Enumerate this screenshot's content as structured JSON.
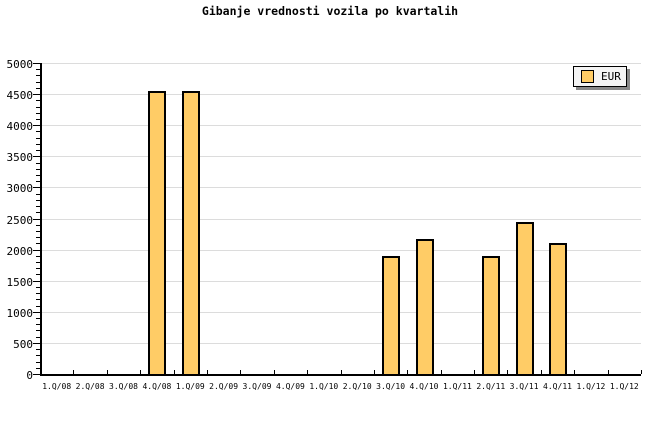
{
  "chart_data": {
    "type": "bar",
    "title": "Gibanje vrednosti vozila po kvartalih",
    "categories": [
      "1.Q/08",
      "2.Q/08",
      "3.Q/08",
      "4.Q/08",
      "1.Q/09",
      "2.Q/09",
      "3.Q/09",
      "4.Q/09",
      "1.Q/10",
      "2.Q/10",
      "3.Q/10",
      "4.Q/10",
      "1.Q/11",
      "2.Q/11",
      "3.Q/11",
      "4.Q/11",
      "1.Q/12",
      "1.Q/12"
    ],
    "series": [
      {
        "name": "EUR",
        "values": [
          null,
          null,
          null,
          4550,
          4550,
          null,
          null,
          null,
          null,
          null,
          1900,
          2170,
          null,
          1900,
          2440,
          2110,
          null,
          null
        ]
      }
    ],
    "ylim": [
      0,
      5000
    ],
    "ytick_step": 500,
    "yminor_step": 100,
    "yticks": [
      0,
      500,
      1000,
      1500,
      2000,
      2500,
      3000,
      3500,
      4000,
      4500,
      5000
    ],
    "grid": "horizontal",
    "legend_position": "top-right",
    "legend_label": "EUR",
    "colors": {
      "bar_fill": "#FFCC66",
      "bar_border": "#000000",
      "grid": "#DCDCDC",
      "axis": "#000000",
      "legend_bg": "#F4F4F4",
      "legend_shadow": "#888888",
      "background": "#FFFFFF"
    }
  }
}
